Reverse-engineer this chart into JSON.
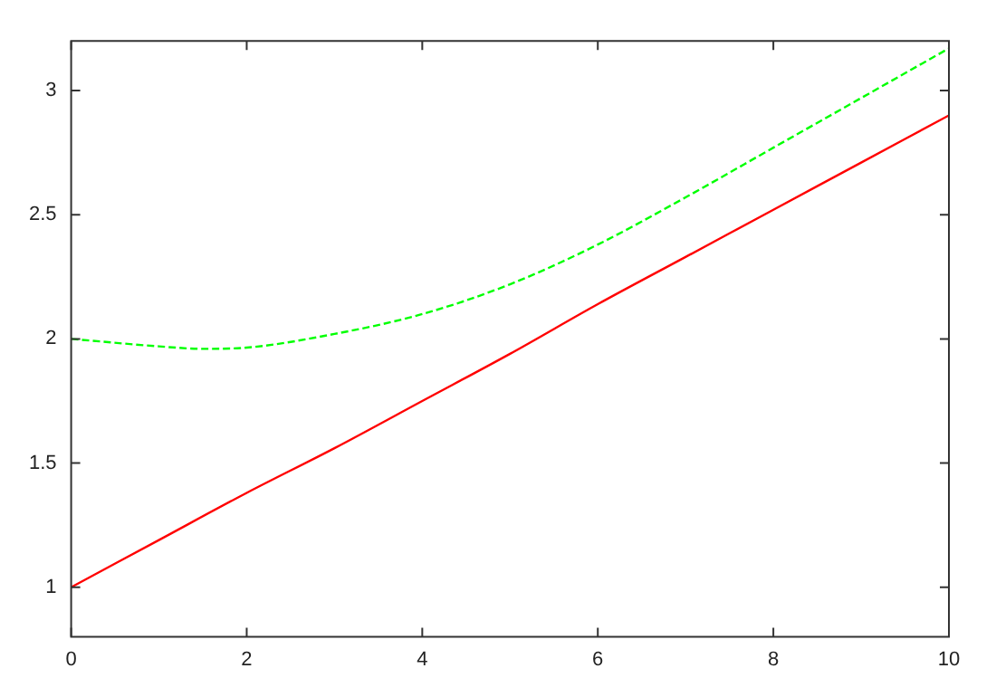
{
  "chart_data": {
    "type": "line",
    "xlim": [
      0,
      10
    ],
    "ylim": [
      0.8,
      3.2
    ],
    "xticks": [
      0,
      2,
      4,
      6,
      8,
      10
    ],
    "yticks": [
      1,
      1.5,
      2,
      2.5,
      3
    ],
    "grid": false,
    "legend": false,
    "marker": "none",
    "series": [
      {
        "color": "#ff0000",
        "line_style": "solid",
        "x": [
          0,
          1,
          2,
          3,
          4,
          5,
          6,
          7,
          8,
          9,
          10
        ],
        "values": [
          1,
          1.19,
          1.38,
          1.56,
          1.75,
          1.94,
          2.14,
          2.33,
          2.52,
          2.71,
          2.9
        ]
      },
      {
        "color": "#00ff00",
        "line_style": "dashed",
        "x": [
          0,
          1,
          1.5,
          2,
          3,
          4,
          5,
          6,
          7,
          8,
          9,
          10
        ],
        "values": [
          2,
          1.97,
          1.96,
          1.965,
          2.02,
          2.1,
          2.22,
          2.38,
          2.57,
          2.77,
          2.97,
          3.17
        ]
      }
    ]
  }
}
